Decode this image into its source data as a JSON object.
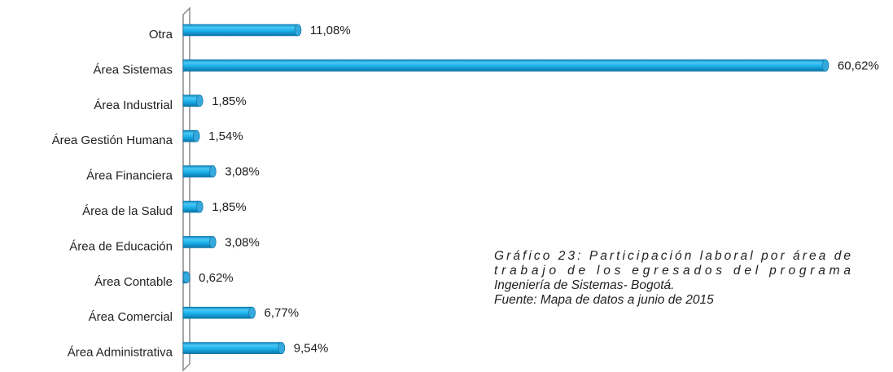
{
  "chart_data": {
    "type": "bar",
    "orientation": "horizontal",
    "categories": [
      "Otra",
      "Área Sistemas",
      "Área Industrial",
      "Área Gestión Humana",
      "Área Financiera",
      "Área de la Salud",
      "Área de Educación",
      "Área Contable",
      "Área Comercial",
      "Área Administrativa"
    ],
    "values": [
      11.08,
      60.62,
      1.85,
      1.54,
      3.08,
      1.85,
      3.08,
      0.62,
      6.77,
      9.54
    ],
    "value_labels": [
      "11,08%",
      "60,62%",
      "1,85%",
      "1,54%",
      "3,08%",
      "1,85%",
      "3,08%",
      "0,62%",
      "6,77%",
      "9,54%"
    ],
    "color": "#1cb2ec",
    "annotations": [
      "Gráfico 23: Participación laboral por área de",
      "trabajo de los egresados del programa",
      "Ingeniería de Sistemas- Bogotá.",
      "Fuente: Mapa de datos a junio de 2015"
    ]
  }
}
